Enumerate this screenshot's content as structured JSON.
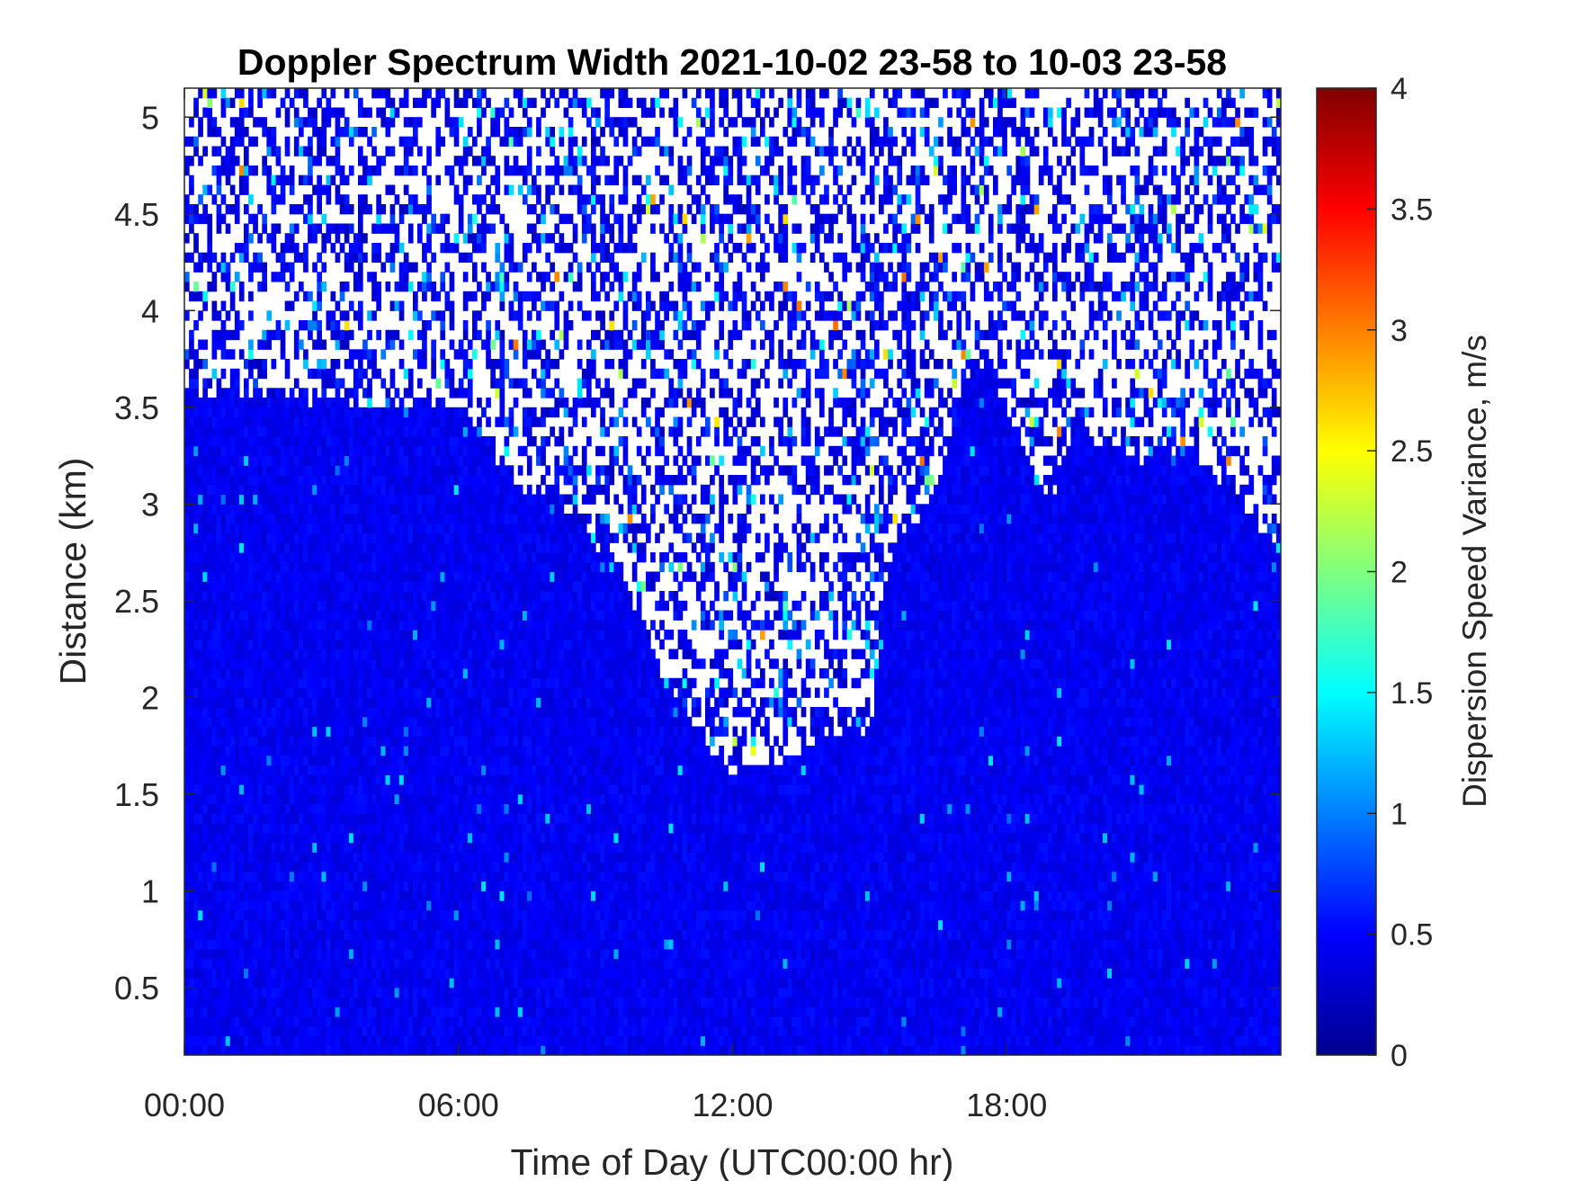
{
  "chart_data": {
    "type": "heatmap",
    "title": "Doppler Spectrum Width 2021-10-02 23-58 to 10-03 23-58",
    "xlabel": "Time of Day (UTC00:00 hr)",
    "ylabel": "Distance (km)",
    "colorbar_label": "Dispersion Speed Variance, m/s",
    "colormap": "jet",
    "xlim_hours": [
      0,
      24
    ],
    "ylim_km": [
      0.15,
      5.15
    ],
    "clim": [
      0,
      4
    ],
    "x_ticks": [
      {
        "value": 0,
        "label": "00:00"
      },
      {
        "value": 6,
        "label": "06:00"
      },
      {
        "value": 12,
        "label": "12:00"
      },
      {
        "value": 18,
        "label": "18:00"
      }
    ],
    "y_ticks": [
      {
        "value": 0.5,
        "label": "0.5"
      },
      {
        "value": 1,
        "label": "1"
      },
      {
        "value": 1.5,
        "label": "1.5"
      },
      {
        "value": 2,
        "label": "2"
      },
      {
        "value": 2.5,
        "label": "2.5"
      },
      {
        "value": 3,
        "label": "3"
      },
      {
        "value": 3.5,
        "label": "3.5"
      },
      {
        "value": 4,
        "label": "4"
      },
      {
        "value": 4.5,
        "label": "4.5"
      },
      {
        "value": 5,
        "label": "5"
      }
    ],
    "colorbar_ticks": [
      {
        "value": 0,
        "label": "0"
      },
      {
        "value": 0.5,
        "label": "0.5"
      },
      {
        "value": 1,
        "label": "1"
      },
      {
        "value": 1.5,
        "label": "1.5"
      },
      {
        "value": 2,
        "label": "2"
      },
      {
        "value": 2.5,
        "label": "2.5"
      },
      {
        "value": 3,
        "label": "3"
      },
      {
        "value": 3.5,
        "label": "3.5"
      },
      {
        "value": 4,
        "label": "4"
      }
    ],
    "signal_top_km": {
      "hours": [
        0,
        1,
        2,
        3,
        4,
        5,
        6,
        6.5,
        7,
        7.5,
        8,
        8.5,
        9,
        9.5,
        10,
        10.5,
        11,
        11.5,
        12,
        12.5,
        13,
        14,
        15,
        15.5,
        16,
        16.5,
        17,
        17.5,
        18,
        18.5,
        19,
        19.5,
        20,
        20.5,
        21,
        21.5,
        22,
        23,
        24
      ],
      "km": [
        3.6,
        3.55,
        3.55,
        3.55,
        3.5,
        3.5,
        3.5,
        3.35,
        3.2,
        3.05,
        3.1,
        2.9,
        2.8,
        2.7,
        2.4,
        2.1,
        1.9,
        1.75,
        1.55,
        1.65,
        1.65,
        1.8,
        1.85,
        2.8,
        2.9,
        3.1,
        3.5,
        3.75,
        3.5,
        3.2,
        3.0,
        3.5,
        3.3,
        3.3,
        3.2,
        3.3,
        3.3,
        3.0,
        2.8
      ]
    },
    "typical_value_in_signal": 0.45,
    "values_above_signal": "sparse, mostly low with scattered higher values"
  }
}
